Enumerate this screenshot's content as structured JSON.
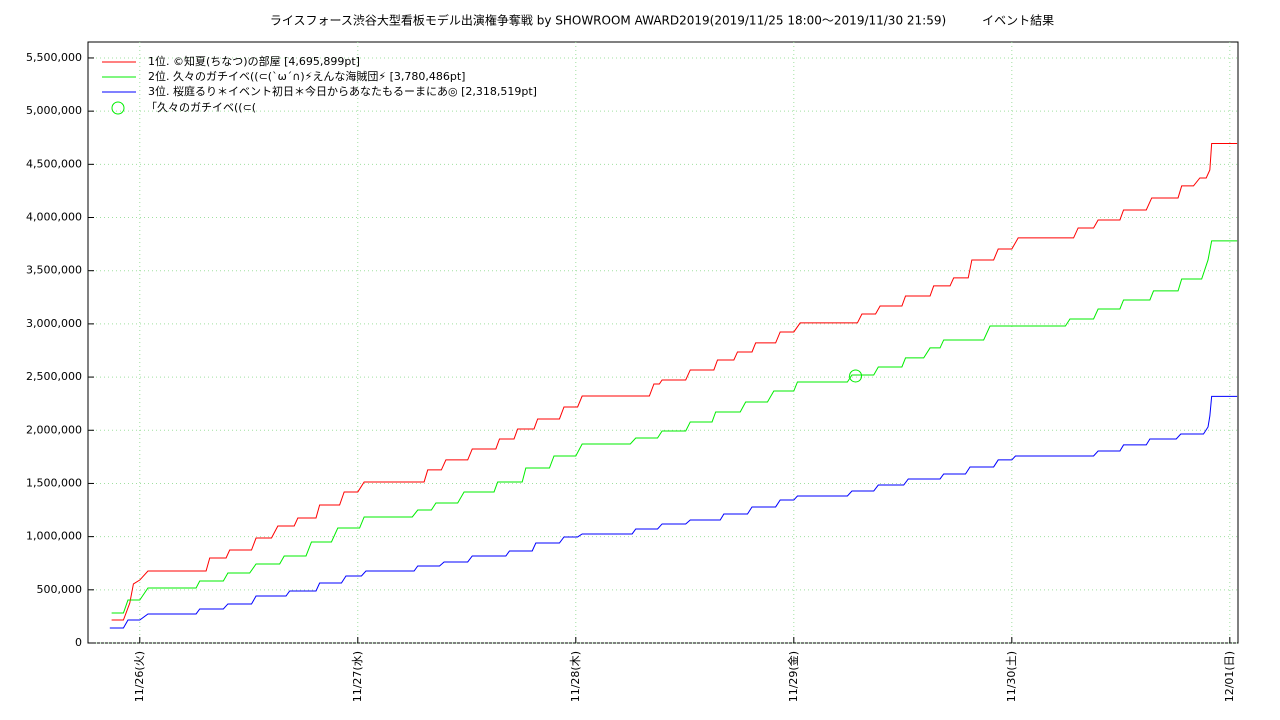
{
  "chart_data": {
    "type": "line",
    "title": "ライスフォース渋谷大型看板モデル出演権争奪戦 by SHOWROOM AWARD2019(2019/11/25 18:00〜2019/11/30 21:59)　　　イベント結果",
    "xlim": [
      18.3,
      144.9
    ],
    "xticks": [
      {
        "value": 24,
        "label": "11/26(火)"
      },
      {
        "value": 48,
        "label": "11/27(水)"
      },
      {
        "value": 72,
        "label": "11/28(木)"
      },
      {
        "value": 96,
        "label": "11/29(金)"
      },
      {
        "value": 120,
        "label": "11/30(土)"
      },
      {
        "value": 144,
        "label": "12/01(日)"
      }
    ],
    "ylim": [
      0,
      5650000
    ],
    "yticks": [
      0,
      {
        "value": 500000,
        "label": "500,000"
      },
      {
        "value": 1000000,
        "label": "1,000,000"
      },
      {
        "value": 1500000,
        "label": "1,500,000"
      },
      {
        "value": 2000000,
        "label": "2,000,000"
      },
      {
        "value": 2500000,
        "label": "2,500,000"
      },
      {
        "value": 3000000,
        "label": "3,000,000"
      },
      {
        "value": 3500000,
        "label": "3,500,000"
      },
      {
        "value": 4000000,
        "label": "4,000,000"
      },
      {
        "value": 4500000,
        "label": "4,500,000"
      },
      {
        "value": 5000000,
        "label": "5,000,000"
      },
      {
        "value": 5500000,
        "label": "5,500,000"
      }
    ],
    "grid": true,
    "legend": "top-left",
    "series": [
      {
        "name": "1位. ©知夏(ちなつ)の部屋 [4,695,899pt]",
        "color": "#ff0000",
        "x": [
          20.9,
          22.2,
          22.9,
          23.3,
          24,
          24.9,
          31.3,
          31.7,
          33.5,
          33.9,
          36.3,
          36.8,
          38.5,
          39.2,
          41.0,
          41.4,
          43.4,
          43.8,
          46.0,
          46.5,
          48.0,
          48.7,
          55.3,
          55.7,
          57.2,
          57.7,
          60.1,
          60.6,
          63.2,
          63.6,
          65.2,
          65.6,
          67.4,
          67.8,
          70.2,
          70.7,
          72.2,
          72.7,
          80.1,
          80.6,
          81.2,
          81.5,
          84.1,
          84.6,
          87.2,
          87.6,
          89.4,
          89.8,
          91.4,
          91.8,
          94.0,
          94.5,
          96.0,
          96.7,
          103.0,
          103.5,
          105.0,
          105.5,
          107.9,
          108.3,
          111.0,
          111.4,
          113.2,
          113.6,
          115.2,
          115.6,
          118.0,
          118.5,
          120.0,
          120.7,
          126.8,
          127.3,
          129.0,
          129.5,
          131.9,
          132.3,
          134.8,
          135.4,
          138.3,
          138.7,
          140.0,
          140.7,
          141.4,
          141.8,
          142.0,
          144.8
        ],
        "values": [
          216000,
          216000,
          376000,
          555000,
          592000,
          677000,
          677000,
          799000,
          799000,
          874000,
          874000,
          987000,
          987000,
          1100000,
          1100000,
          1175000,
          1175000,
          1297000,
          1297000,
          1420000,
          1420000,
          1514000,
          1514000,
          1627000,
          1627000,
          1721000,
          1721000,
          1824000,
          1824000,
          1918000,
          1918000,
          2012000,
          2012000,
          2106000,
          2106000,
          2219000,
          2219000,
          2322000,
          2322000,
          2435000,
          2435000,
          2473000,
          2473000,
          2567000,
          2567000,
          2661000,
          2661000,
          2736000,
          2736000,
          2821000,
          2821000,
          2924000,
          2924000,
          3009000,
          3009000,
          3093000,
          3093000,
          3168000,
          3168000,
          3262000,
          3262000,
          3357000,
          3357000,
          3432000,
          3432000,
          3601000,
          3601000,
          3704000,
          3704000,
          3808000,
          3808000,
          3902000,
          3902000,
          3977000,
          3977000,
          4071000,
          4071000,
          4184000,
          4184000,
          4297000,
          4297000,
          4372000,
          4372000,
          4447000,
          4696000,
          4696000
        ]
      },
      {
        "name": "2位. 久々のガチイベ((⊂(`ω´∩)⚡えんな海賊団⚡ [3,780,486pt]",
        "color": "#00ee00",
        "x": [
          20.9,
          22.2,
          22.7,
          24,
          24.9,
          30.2,
          30.6,
          33.2,
          33.7,
          36.1,
          36.8,
          39.4,
          39.9,
          42.3,
          42.9,
          45.1,
          45.8,
          48.2,
          48.7,
          54.0,
          54.6,
          56.1,
          56.6,
          59.0,
          59.7,
          63.0,
          63.4,
          66.1,
          66.5,
          69.1,
          69.6,
          72.0,
          72.7,
          78.0,
          78.6,
          81.0,
          81.5,
          84.1,
          84.6,
          87.0,
          87.4,
          90.1,
          90.7,
          93.1,
          93.8,
          96.0,
          96.4,
          101.9,
          102.4,
          104.8,
          105.3,
          107.9,
          108.3,
          110.3,
          111.0,
          112.1,
          112.5,
          116.9,
          117.6,
          125.9,
          126.4,
          129.0,
          129.5,
          131.9,
          132.3,
          135.2,
          135.6,
          138.3,
          138.7,
          140.9,
          141.6,
          142.0,
          144.8
        ],
        "values": [
          282000,
          282000,
          404000,
          404000,
          517000,
          517000,
          583000,
          583000,
          658000,
          658000,
          743000,
          743000,
          818000,
          818000,
          950000,
          950000,
          1081000,
          1081000,
          1185000,
          1185000,
          1250000,
          1250000,
          1316000,
          1316000,
          1420000,
          1420000,
          1514000,
          1514000,
          1645000,
          1645000,
          1758000,
          1758000,
          1871000,
          1871000,
          1927000,
          1927000,
          1993000,
          1993000,
          2078000,
          2078000,
          2172000,
          2172000,
          2266000,
          2266000,
          2369000,
          2369000,
          2454000,
          2454000,
          2520000,
          2520000,
          2595000,
          2595000,
          2680000,
          2680000,
          2774000,
          2774000,
          2849000,
          2849000,
          2980000,
          2980000,
          3046000,
          3046000,
          3140000,
          3140000,
          3225000,
          3225000,
          3310000,
          3310000,
          3422000,
          3422000,
          3601000,
          3780000,
          3780000
        ]
      },
      {
        "name": "3位. 桜庭るり＊イベント初日＊今日からあなたもるーまにあ◎ [2,318,519pt]",
        "color": "#0000ff",
        "x": [
          20.7,
          22.2,
          22.7,
          24,
          24.9,
          30.2,
          30.6,
          33.2,
          33.7,
          36.3,
          36.8,
          40.1,
          40.5,
          43.4,
          43.8,
          46.2,
          46.7,
          48.4,
          48.9,
          54.2,
          54.6,
          57.0,
          57.5,
          60.1,
          60.6,
          64.3,
          64.7,
          67.2,
          67.6,
          70.2,
          70.7,
          72.2,
          72.7,
          78.2,
          78.6,
          81.0,
          81.5,
          84.1,
          84.6,
          87.9,
          88.3,
          90.9,
          91.4,
          94.0,
          94.5,
          96.0,
          96.4,
          101.9,
          102.4,
          104.8,
          105.3,
          108.1,
          108.6,
          112.1,
          112.5,
          114.9,
          115.4,
          118.0,
          118.5,
          120.0,
          120.4,
          129.0,
          129.5,
          131.9,
          132.3,
          134.8,
          135.2,
          138.1,
          138.6,
          141.1,
          141.6,
          141.8,
          142.0,
          144.8
        ],
        "values": [
          141000,
          141000,
          216000,
          216000,
          273000,
          273000,
          320000,
          320000,
          367000,
          367000,
          442000,
          442000,
          489000,
          489000,
          564000,
          564000,
          630000,
          630000,
          677000,
          677000,
          724000,
          724000,
          762000,
          762000,
          818000,
          818000,
          865000,
          865000,
          940000,
          940000,
          997000,
          997000,
          1025000,
          1025000,
          1072000,
          1072000,
          1119000,
          1119000,
          1156000,
          1156000,
          1213000,
          1213000,
          1279000,
          1279000,
          1344000,
          1344000,
          1382000,
          1382000,
          1429000,
          1429000,
          1485000,
          1485000,
          1542000,
          1542000,
          1589000,
          1589000,
          1655000,
          1655000,
          1721000,
          1721000,
          1758000,
          1758000,
          1805000,
          1805000,
          1862000,
          1862000,
          1918000,
          1918000,
          1965000,
          1965000,
          2031000,
          2134000,
          2319000,
          2319000
        ]
      }
    ],
    "markers": [
      {
        "label": "「久々のガチイベ((⊂(",
        "color": "#00ee00",
        "x": 102.8,
        "y": 2510000
      }
    ]
  }
}
